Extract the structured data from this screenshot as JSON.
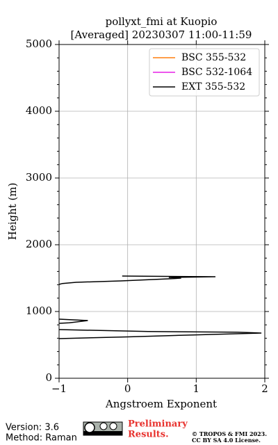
{
  "chart_data": {
    "type": "line",
    "title": "pollyxt_fmi at Kuopio",
    "subtitle": "[Averaged] 20230307 11:00-11:59",
    "xlabel": "Angstroem Exponent",
    "ylabel": "Height (m)",
    "xlim": [
      -1,
      2
    ],
    "xticks": [
      {
        "value": -1,
        "label": "−1"
      },
      0,
      1,
      2
    ],
    "ylim": [
      0,
      5000
    ],
    "yticks": [
      0,
      1000,
      2000,
      3000,
      4000,
      5000
    ],
    "grid": true,
    "legend": "upper right",
    "y": [
      594,
      620,
      650,
      677,
      690,
      700,
      729,
      null,
      823,
      830,
      865,
      885,
      null,
      1406,
      1420,
      1437,
      1458,
      1490,
      1500,
      1510,
      1521,
      1531
    ],
    "series": [
      {
        "name": "BSC 355-532",
        "color": "#ff7f0e",
        "values": [
          null,
          null,
          null,
          null,
          null,
          null,
          null,
          null,
          null,
          null,
          null,
          null,
          null,
          null,
          null,
          null,
          null,
          null,
          null,
          null,
          null,
          null
        ]
      },
      {
        "name": "BSC 532-1064",
        "color": "#e61ee6",
        "values": [
          null,
          null,
          null,
          null,
          null,
          null,
          null,
          null,
          null,
          null,
          null,
          null,
          null,
          null,
          null,
          null,
          null,
          null,
          null,
          null,
          null,
          null
        ]
      },
      {
        "name": "EXT 355-532",
        "color": "#000000",
        "values": [
          -1.0,
          0.0,
          1.0,
          1.95,
          1.6,
          0.3,
          -1.0,
          null,
          -1.0,
          -0.85,
          -0.58,
          -1.0,
          null,
          -1.0,
          -0.95,
          -0.75,
          -0.1,
          0.6,
          0.78,
          0.6,
          1.28,
          -0.08
        ]
      }
    ]
  },
  "footer": {
    "version": "Version: 3.6",
    "method": "Method: Raman",
    "preliminary": [
      "Preliminary",
      "Results."
    ],
    "copyright": [
      "© TROPOS & FMI 2023.",
      "CC BY SA 4.0 License."
    ]
  }
}
